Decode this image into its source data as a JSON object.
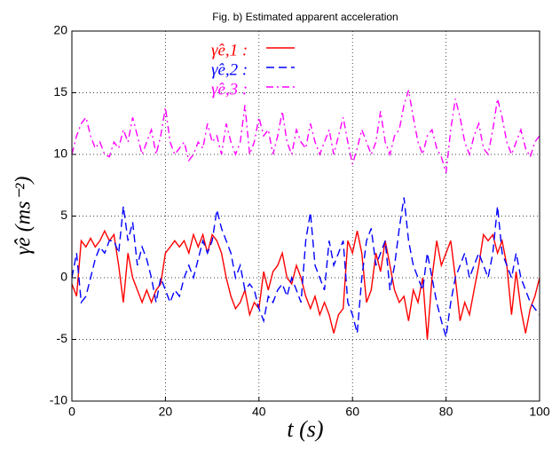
{
  "chart_data": {
    "type": "line",
    "title": "Fig. b) Estimated apparent acceleration",
    "x_label": "t (s)",
    "y_label": "γ̂e (ms⁻²)",
    "xlim": [
      0,
      100
    ],
    "xticks": [
      0,
      20,
      40,
      60,
      80,
      100
    ],
    "ylim": [
      -10,
      20
    ],
    "yticks": [
      -10,
      -5,
      0,
      5,
      10,
      15,
      20
    ],
    "grid": true,
    "x": [
      0,
      1,
      2,
      3,
      4,
      5,
      6,
      7,
      8,
      9,
      10,
      11,
      12,
      13,
      14,
      15,
      16,
      17,
      18,
      19,
      20,
      21,
      22,
      23,
      24,
      25,
      26,
      27,
      28,
      29,
      30,
      31,
      32,
      33,
      34,
      35,
      36,
      37,
      38,
      39,
      40,
      41,
      42,
      43,
      44,
      45,
      46,
      47,
      48,
      49,
      50,
      51,
      52,
      53,
      54,
      55,
      56,
      57,
      58,
      59,
      60,
      61,
      62,
      63,
      64,
      65,
      66,
      67,
      68,
      69,
      70,
      71,
      72,
      73,
      74,
      75,
      76,
      77,
      78,
      79,
      80,
      81,
      82,
      83,
      84,
      85,
      86,
      87,
      88,
      89,
      90,
      91,
      92,
      93,
      94,
      95,
      96,
      97,
      98,
      99,
      100
    ],
    "series": [
      {
        "name": "γ̂e,1 :",
        "color": "#ff0000",
        "line_style": "solid",
        "values": [
          -0.5,
          -1.5,
          3,
          2.5,
          3.2,
          2.5,
          3,
          3.8,
          3,
          3.5,
          1,
          -2,
          2,
          0,
          -1,
          -2,
          -1,
          -2,
          -1,
          -0.5,
          2,
          2.5,
          3,
          2.5,
          3,
          2,
          3.5,
          2.5,
          3.5,
          2,
          3.5,
          3,
          2,
          0,
          -1.5,
          -2.5,
          -2,
          -1,
          -3,
          -2,
          -2.5,
          0.5,
          -1,
          0.5,
          1,
          2,
          0,
          -0.5,
          1,
          0,
          -1.5,
          -2.5,
          -1.5,
          -3,
          -2,
          -3,
          -4.5,
          -3,
          -2.5,
          3,
          2,
          3.8,
          2,
          -2,
          -1,
          2,
          0.5,
          3,
          1,
          -1,
          -2,
          -1.5,
          -3.5,
          -1,
          -2,
          0,
          -5,
          0,
          3,
          1,
          2,
          3,
          0,
          -3.5,
          -2,
          -3,
          -1,
          1,
          3.5,
          3,
          3.5,
          2,
          3,
          1,
          -3,
          0.5,
          -2.5,
          -4.5,
          -2.5,
          -1.5,
          0
        ]
      },
      {
        "name": "γ̂e,2 :",
        "color": "#0000ff",
        "line_style": "dashed",
        "values": [
          0,
          2,
          -2,
          -1.5,
          0,
          1.5,
          2.5,
          2,
          3,
          3,
          2,
          5.8,
          3,
          4.5,
          1,
          2.5,
          1.5,
          0,
          -2,
          0,
          -1,
          -2,
          -1,
          -1.5,
          0,
          1,
          0,
          1.5,
          3,
          2,
          3,
          5.5,
          4,
          3,
          2,
          0,
          1,
          -1,
          -0.5,
          -1,
          -2.5,
          -3.5,
          -1.5,
          -2,
          -1,
          -0.5,
          -1.5,
          0,
          -1,
          -2,
          3,
          5.3,
          1,
          0,
          -1,
          3,
          1,
          2,
          3,
          -2,
          -3,
          -4.5,
          0,
          3,
          4,
          1,
          2,
          3,
          -1,
          1,
          4,
          6.5,
          3,
          1,
          0,
          -1,
          2,
          0,
          -2,
          -3.5,
          -4.8,
          -2,
          0,
          1,
          2,
          0,
          1,
          2,
          1,
          0,
          2,
          5.8,
          2,
          1,
          0,
          2,
          0,
          -1,
          -2,
          -2.5,
          -3
        ]
      },
      {
        "name": "γ̂e,3 :",
        "color": "#ff00ff",
        "line_style": "dashdot",
        "values": [
          10,
          11.5,
          12.5,
          13,
          11.5,
          10.5,
          11,
          10,
          9.8,
          11,
          10.5,
          12,
          11,
          13,
          11.5,
          10,
          11,
          12,
          10,
          11.5,
          13.8,
          11,
          10,
          10.5,
          11,
          9.5,
          10,
          11,
          10.5,
          12.5,
          11,
          11.5,
          10,
          12.5,
          11,
          10,
          11,
          14,
          10,
          11,
          13,
          11.5,
          12,
          10,
          11.5,
          13.5,
          11,
          10,
          12,
          11,
          10.5,
          12.5,
          11,
          10,
          11,
          12,
          10,
          11.5,
          13,
          11,
          9.2,
          10.5,
          12,
          11,
          10,
          11,
          13.5,
          11,
          10,
          11.5,
          12,
          14,
          15.2,
          13,
          11,
          10,
          11.5,
          12,
          10.5,
          9.8,
          8.5,
          12,
          14.5,
          13,
          11,
          10,
          11.5,
          12.5,
          10.5,
          10,
          12,
          14.5,
          13,
          11,
          10,
          11,
          12,
          10.5,
          9.8,
          11,
          11.5
        ]
      }
    ]
  }
}
